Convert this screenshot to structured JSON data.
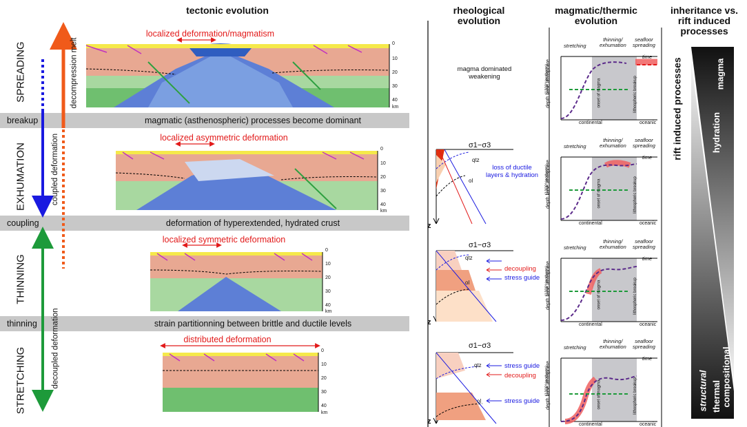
{
  "headers": {
    "tectonic": "tectonic evolution",
    "rheological": "rheological\nevolution",
    "magmatic": "magmatic/thermic\nevolution",
    "inheritance": "inheritance vs.\nrift induced\nprocesses"
  },
  "stages": [
    "SPREADING",
    "EXHUMATION",
    "THINNING",
    "STRETCHING"
  ],
  "bands": [
    {
      "label": "breakup",
      "desc": "magmatic (asthenospheric) processes become dominant"
    },
    {
      "label": "coupling",
      "desc": "deformation of hyperextended, hydrated crust"
    },
    {
      "label": "thinning",
      "desc": "strain partitionning between brittle and ductile levels"
    }
  ],
  "arrows": {
    "decompression": "decompression melt",
    "coupled": "coupled deformation",
    "decoupled": "decoupled deformation"
  },
  "sections": [
    {
      "title": "localized deformation/magmatism"
    },
    {
      "title": "localized asymmetric deformation"
    },
    {
      "title": "localized symmetric deformation"
    },
    {
      "title": "distributed deformation"
    }
  ],
  "depth_ticks": [
    "0",
    "10",
    "20",
    "30",
    "40",
    "km"
  ],
  "rheology": {
    "magma_text": "magma dominated\nweakening",
    "sigma": "σ1−σ3",
    "z": "z",
    "qtz": "qtz",
    "ol": "ol",
    "panel2": [
      "loss of ductile",
      "layers & hydration"
    ],
    "panel3": [
      "decoupling",
      "stress guide"
    ],
    "panel4": [
      "stress guide",
      "decoupling",
      "stress guide"
    ]
  },
  "magmatic": {
    "stretching": "stretching",
    "thinning": "thinning/\nexhumation",
    "seafloor": "seafloor\nspreading",
    "time": "time",
    "ylabel": "depth base lithosphere",
    "isotherm": "(1300° isotherm)",
    "onset": "onset of",
    "magma": "magma",
    "breakup": "lithospheric breakup",
    "continental": "continental",
    "oceanic": "oceanic"
  },
  "inheritance": {
    "rift": "rift induced processes",
    "magma": "magma",
    "hydration": "hydration",
    "structural": "structural",
    "thermal": "thermal",
    "compositional": "compositional",
    "inheritance": "inheritance"
  },
  "colors": {
    "red": "#e21a1a",
    "blue": "#1a1ae0",
    "green": "#1d9a3a",
    "orange": "#f05a1a",
    "purple": "#5b2a8a"
  }
}
